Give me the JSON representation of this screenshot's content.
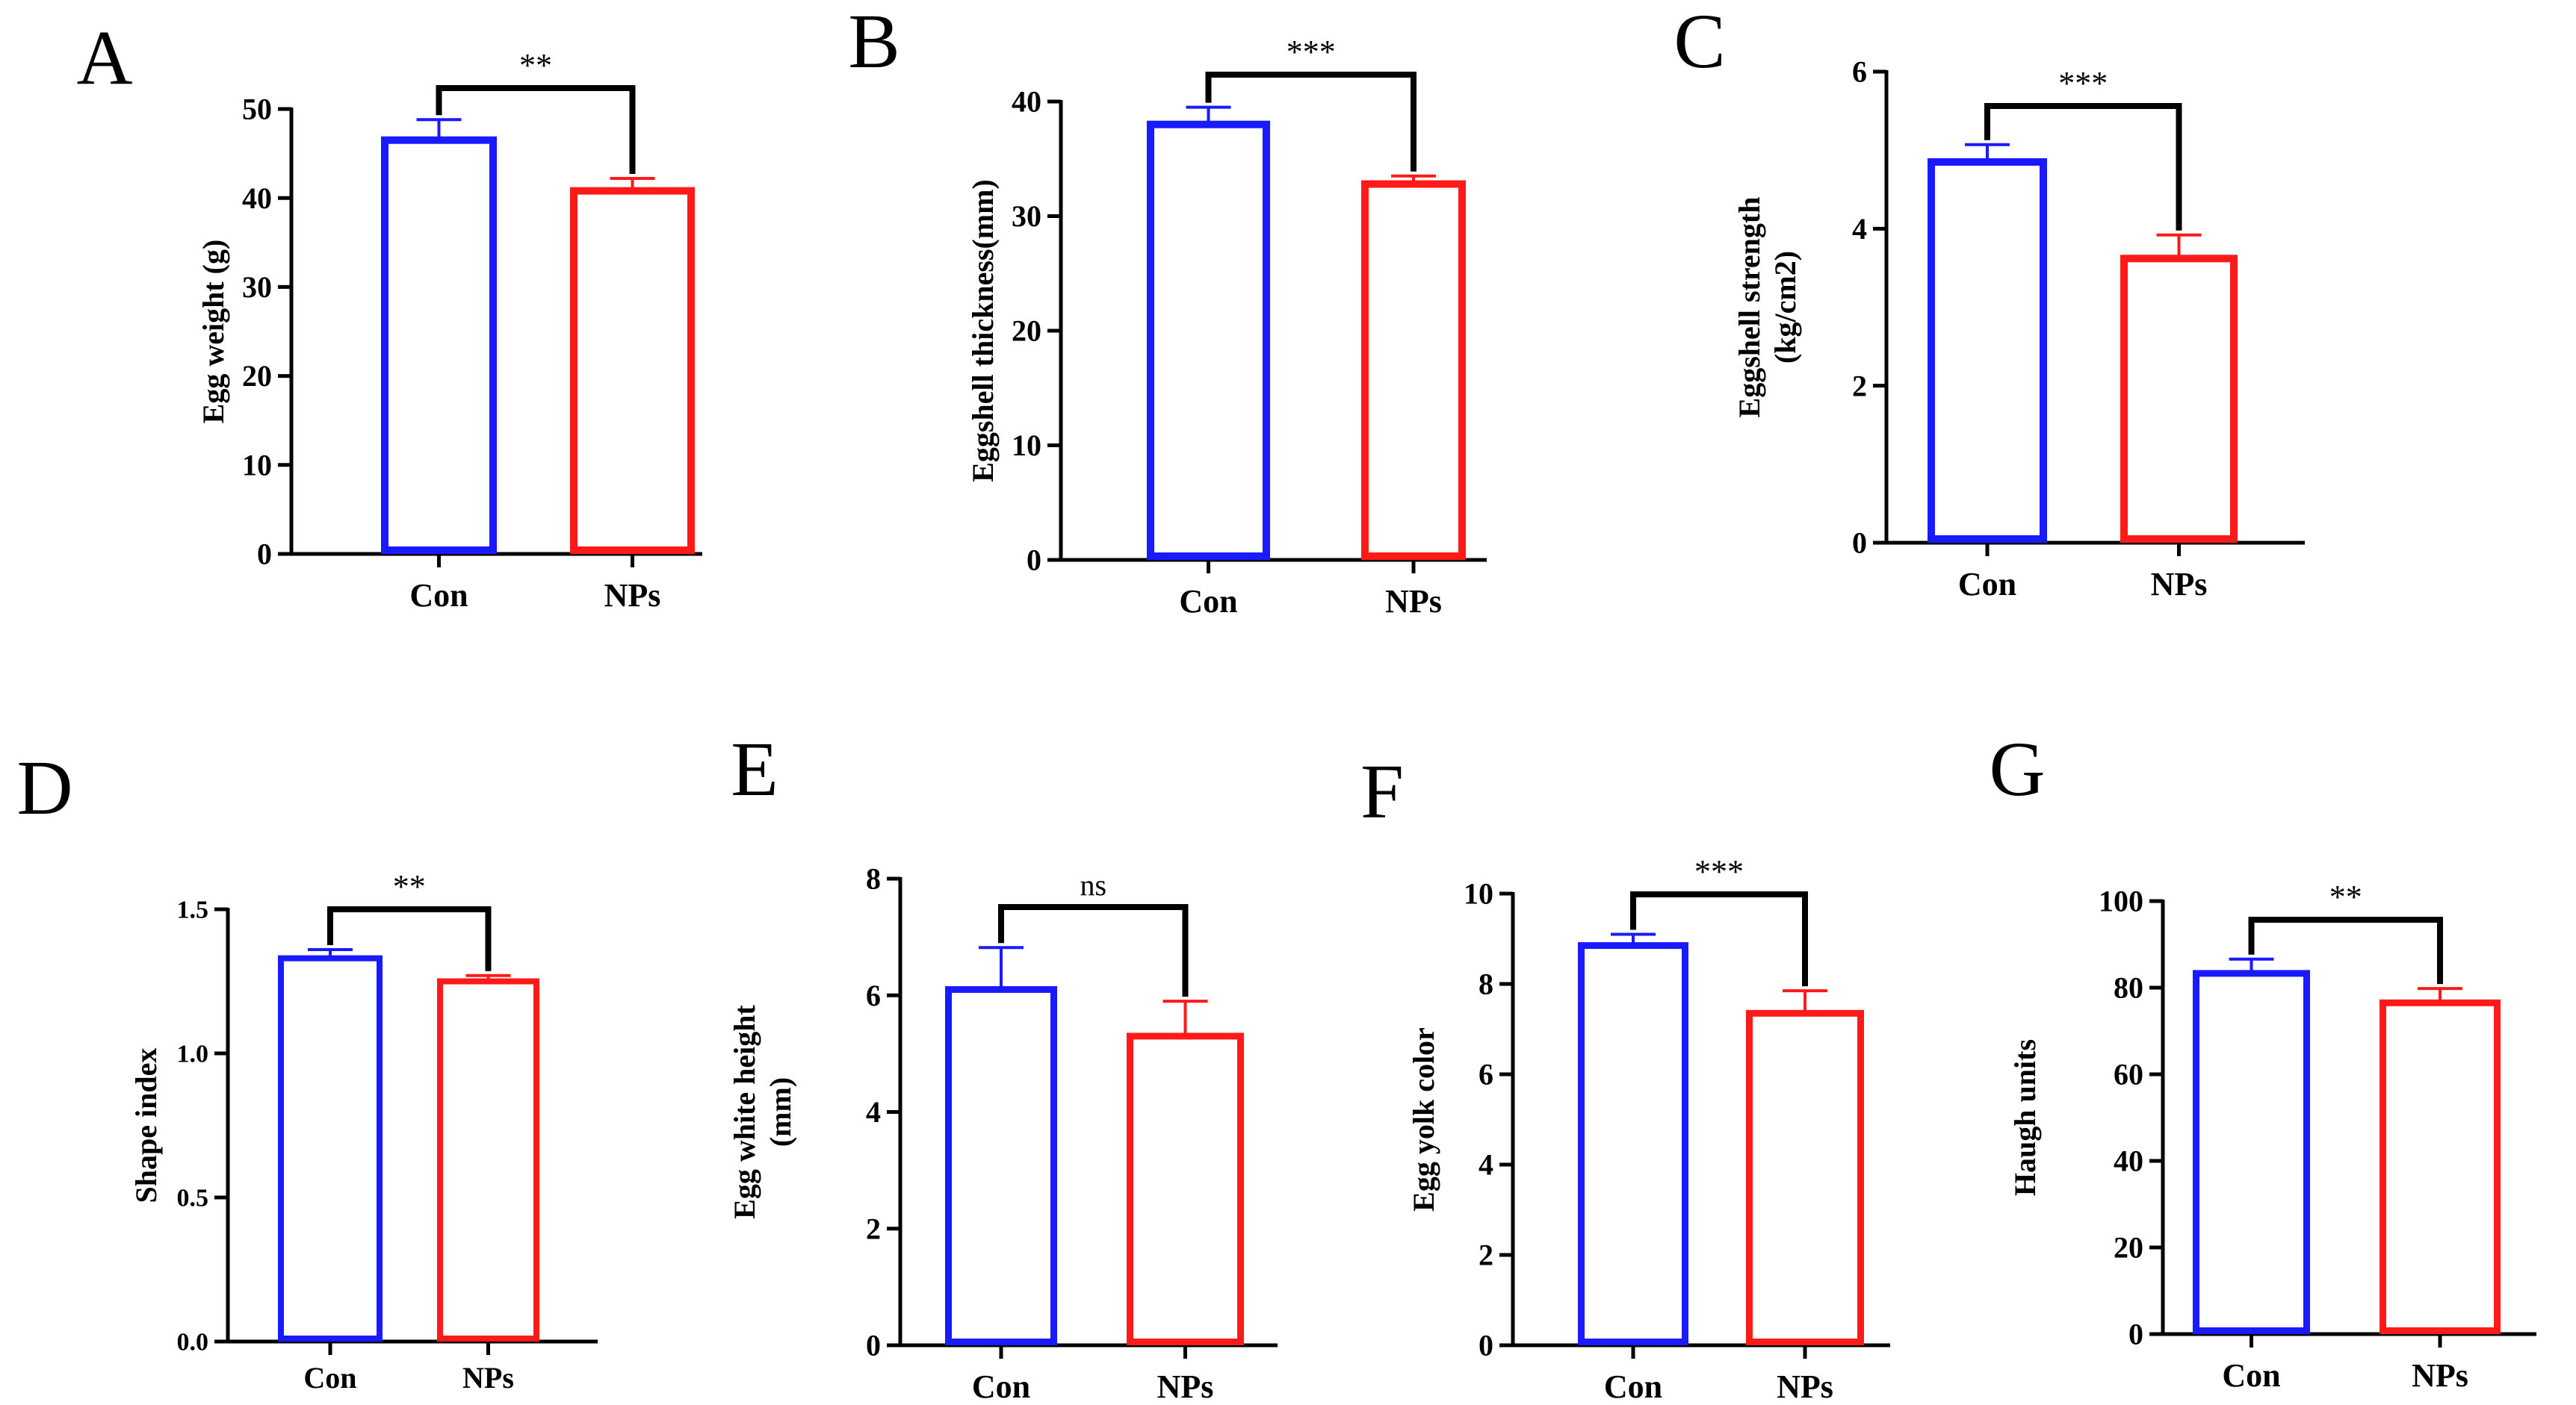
{
  "figure": {
    "description_free": true,
    "colors": {
      "con": "#1a1aff",
      "nps": "#ff1a1a",
      "axis": "#000000"
    }
  },
  "chart_data": [
    {
      "panel": "A",
      "type": "bar",
      "categories": [
        "Con",
        "NPs"
      ],
      "values": [
        46.5,
        40.8
      ],
      "errors": [
        2.3,
        1.4
      ],
      "ylabel": "Egg weight (g)",
      "ylim": [
        0,
        50
      ],
      "yticks": [
        "0",
        "10",
        "20",
        "30",
        "40",
        "50"
      ],
      "significance": "**"
    },
    {
      "panel": "B",
      "type": "bar",
      "categories": [
        "Con",
        "NPs"
      ],
      "values": [
        38.0,
        32.8
      ],
      "errors": [
        1.5,
        0.7
      ],
      "ylabel": "Eggshell thickness(mm)",
      "ylim": [
        0,
        40
      ],
      "yticks": [
        "0",
        "10",
        "20",
        "30",
        "40"
      ],
      "significance": "***"
    },
    {
      "panel": "C",
      "type": "bar",
      "categories": [
        "Con",
        "NPs"
      ],
      "values": [
        4.85,
        3.62
      ],
      "errors": [
        0.22,
        0.3
      ],
      "ylabel": "Eggshell strength",
      "ylabel2": "(kg/cm2)",
      "ylim": [
        0,
        6
      ],
      "yticks": [
        "0",
        "2",
        "4",
        "6"
      ],
      "significance": "***"
    },
    {
      "panel": "D",
      "type": "bar",
      "categories": [
        "Con",
        "NPs"
      ],
      "values": [
        1.33,
        1.25
      ],
      "errors": [
        0.03,
        0.02
      ],
      "ylabel": "Shape index",
      "ylim": [
        0,
        1.5
      ],
      "yticks": [
        "0.0",
        "0.5",
        "1.0",
        "1.5"
      ],
      "significance": "**"
    },
    {
      "panel": "E",
      "type": "bar",
      "categories": [
        "Con",
        "NPs"
      ],
      "values": [
        6.1,
        5.3
      ],
      "errors": [
        0.72,
        0.6
      ],
      "ylabel": "Egg white height",
      "ylabel2": "(mm)",
      "ylim": [
        0,
        8
      ],
      "yticks": [
        "0",
        "2",
        "4",
        "6",
        "8"
      ],
      "significance": "ns"
    },
    {
      "panel": "F",
      "type": "bar",
      "categories": [
        "Con",
        "NPs"
      ],
      "values": [
        8.85,
        7.35
      ],
      "errors": [
        0.25,
        0.5
      ],
      "ylabel": "Egg yolk color",
      "ylim": [
        0,
        10
      ],
      "yticks": [
        "0",
        "2",
        "4",
        "6",
        "8",
        "10"
      ],
      "significance": "***"
    },
    {
      "panel": "G",
      "type": "bar",
      "categories": [
        "Con",
        "NPs"
      ],
      "values": [
        83.3,
        76.5
      ],
      "errors": [
        3.3,
        3.3
      ],
      "ylabel": "Haugh units",
      "ylim": [
        0,
        100
      ],
      "yticks": [
        "0",
        "20",
        "40",
        "60",
        "80",
        "100"
      ],
      "significance": "**"
    }
  ]
}
